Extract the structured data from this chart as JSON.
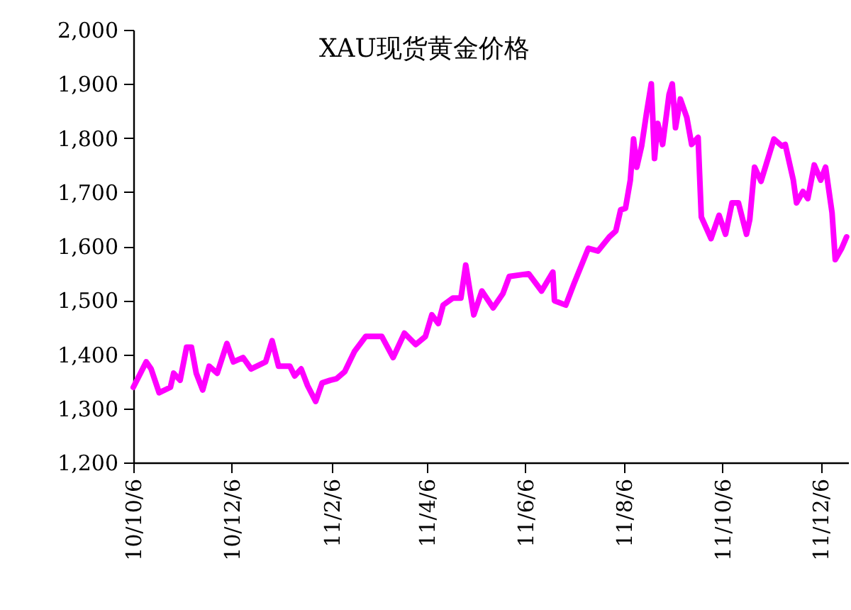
{
  "chart_data": {
    "type": "line",
    "title": "XAU现货黄金价格",
    "x": [
      "2010-10-06",
      "2010-10-14",
      "2010-10-17",
      "2010-10-22",
      "2010-10-29",
      "2010-10-31",
      "2010-11-04",
      "2010-11-08",
      "2010-11-11",
      "2010-11-14",
      "2010-11-18",
      "2010-11-22",
      "2010-11-27",
      "2010-12-03",
      "2010-12-07",
      "2010-12-13",
      "2010-12-18",
      "2010-12-27",
      "2010-12-31",
      "2011-01-04",
      "2011-01-11",
      "2011-01-14",
      "2011-01-18",
      "2011-01-22",
      "2011-01-27",
      "2011-01-31",
      "2011-02-05",
      "2011-02-09",
      "2011-02-14",
      "2011-02-20",
      "2011-02-27",
      "2011-03-09",
      "2011-03-16",
      "2011-03-23",
      "2011-03-30",
      "2011-04-05",
      "2011-04-09",
      "2011-04-13",
      "2011-04-16",
      "2011-04-22",
      "2011-04-27",
      "2011-04-30",
      "2011-05-05",
      "2011-05-10",
      "2011-05-17",
      "2011-05-23",
      "2011-05-27",
      "2011-06-08",
      "2011-06-16",
      "2011-06-23",
      "2011-06-24",
      "2011-07-01",
      "2011-07-06",
      "2011-07-15",
      "2011-07-21",
      "2011-07-28",
      "2011-08-01",
      "2011-08-04",
      "2011-08-07",
      "2011-08-10",
      "2011-08-12",
      "2011-08-14",
      "2011-08-17",
      "2011-08-20",
      "2011-08-23",
      "2011-08-25",
      "2011-08-27",
      "2011-08-30",
      "2011-09-03",
      "2011-09-05",
      "2011-09-07",
      "2011-09-10",
      "2011-09-14",
      "2011-09-17",
      "2011-09-21",
      "2011-09-23",
      "2011-09-29",
      "2011-10-04",
      "2011-10-08",
      "2011-10-12",
      "2011-10-16",
      "2011-10-21",
      "2011-10-23",
      "2011-10-26",
      "2011-10-30",
      "2011-11-07",
      "2011-11-12",
      "2011-11-14",
      "2011-11-19",
      "2011-11-21",
      "2011-11-25",
      "2011-11-28",
      "2011-12-02",
      "2011-12-06",
      "2011-12-09",
      "2011-12-13",
      "2011-12-15",
      "2011-12-19",
      "2011-12-22"
    ],
    "series": [
      {
        "color": "#ff00ff",
        "values": [
          1339,
          1386,
          1373,
          1329,
          1339,
          1365,
          1352,
          1413,
          1413,
          1365,
          1334,
          1378,
          1365,
          1420,
          1386,
          1394,
          1373,
          1386,
          1425,
          1378,
          1378,
          1360,
          1373,
          1342,
          1313,
          1347,
          1352,
          1355,
          1368,
          1405,
          1433,
          1433,
          1394,
          1439,
          1418,
          1433,
          1473,
          1457,
          1491,
          1504,
          1504,
          1565,
          1473,
          1517,
          1486,
          1512,
          1544,
          1549,
          1517,
          1552,
          1499,
          1491,
          1530,
          1596,
          1591,
          1617,
          1628,
          1667,
          1670,
          1722,
          1798,
          1746,
          1785,
          1845,
          1900,
          1762,
          1827,
          1788,
          1880,
          1900,
          1819,
          1872,
          1838,
          1788,
          1801,
          1654,
          1614,
          1657,
          1622,
          1680,
          1680,
          1622,
          1649,
          1746,
          1720,
          1798,
          1785,
          1788,
          1722,
          1680,
          1701,
          1688,
          1750,
          1722,
          1746,
          1662,
          1575,
          1596,
          1617
        ]
      }
    ],
    "xlim": [
      "2010-10-06",
      "2011-12-23"
    ],
    "xticks": [
      {
        "value": "2010-10-06",
        "label": "10/10/6"
      },
      {
        "value": "2010-12-06",
        "label": "10/12/6"
      },
      {
        "value": "2011-02-06",
        "label": "11/2/6"
      },
      {
        "value": "2011-04-06",
        "label": "11/4/6"
      },
      {
        "value": "2011-06-06",
        "label": "11/6/6"
      },
      {
        "value": "2011-08-06",
        "label": "11/8/6"
      },
      {
        "value": "2011-10-06",
        "label": "11/10/6"
      },
      {
        "value": "2011-12-06",
        "label": "11/12/6"
      }
    ],
    "ylim": [
      1200,
      2000
    ],
    "yticks": [
      {
        "value": 1200,
        "label": "1,200"
      },
      {
        "value": 1300,
        "label": "1,300"
      },
      {
        "value": 1400,
        "label": "1,400"
      },
      {
        "value": 1500,
        "label": "1,500"
      },
      {
        "value": 1600,
        "label": "1,600"
      },
      {
        "value": 1700,
        "label": "1,700"
      },
      {
        "value": 1800,
        "label": "1,800"
      },
      {
        "value": 1900,
        "label": "1,900"
      },
      {
        "value": 2000,
        "label": "2,000"
      }
    ],
    "grid": false,
    "marker": "none",
    "line_style": "solid"
  }
}
